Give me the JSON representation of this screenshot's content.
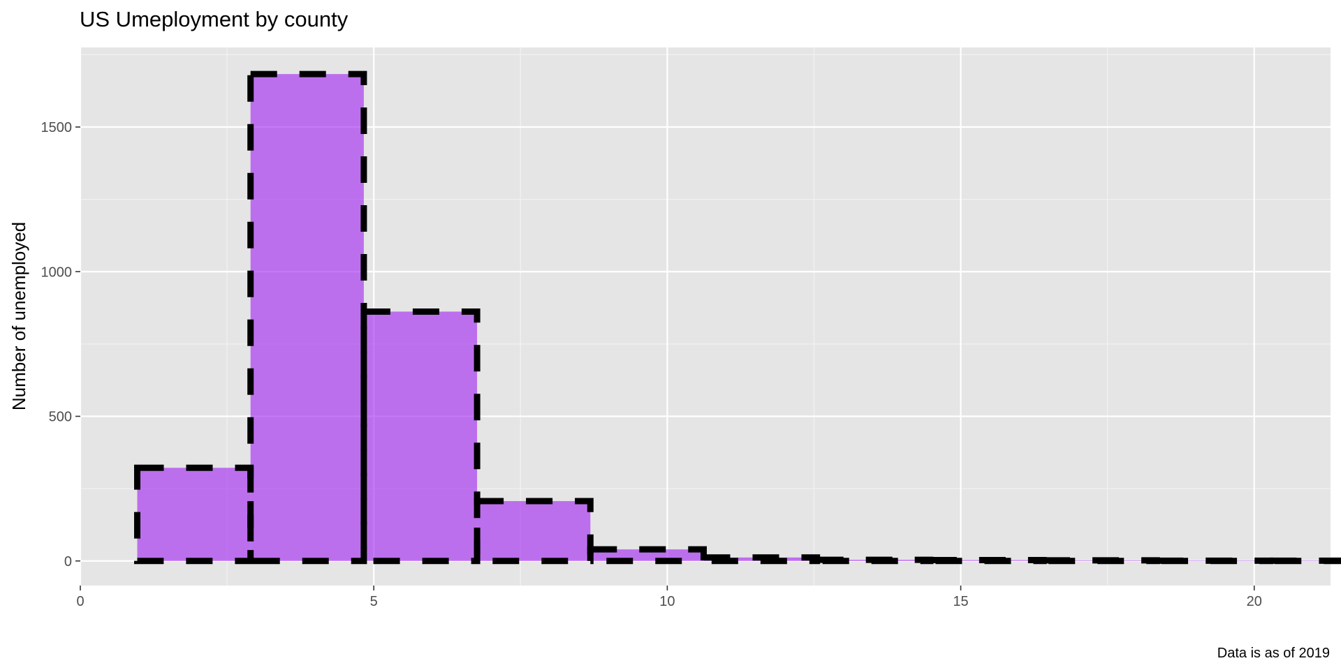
{
  "chart_data": {
    "type": "bar",
    "title": "US Umeployment by county",
    "xlabel": "",
    "ylabel": "Number of unemployed",
    "caption": "Data is as of 2019",
    "xlim": [
      0,
      21.3
    ],
    "ylim": [
      -85,
      1775
    ],
    "x_ticks": [
      "0",
      "5",
      "10",
      "15",
      "20"
    ],
    "y_ticks": [
      "0",
      "500",
      "1000",
      "1500"
    ],
    "bin_width": 1.93,
    "bin_start": 0.97,
    "values": [
      322,
      1683,
      862,
      207,
      40,
      12,
      4,
      3,
      2,
      1,
      1,
      1,
      1,
      1,
      1,
      1,
      1,
      1,
      1,
      1
    ],
    "grid": true,
    "fill_color": "#a020f0",
    "fill_opacity": 0.6,
    "outline_color": "#000000",
    "outline_style": "dashed"
  }
}
